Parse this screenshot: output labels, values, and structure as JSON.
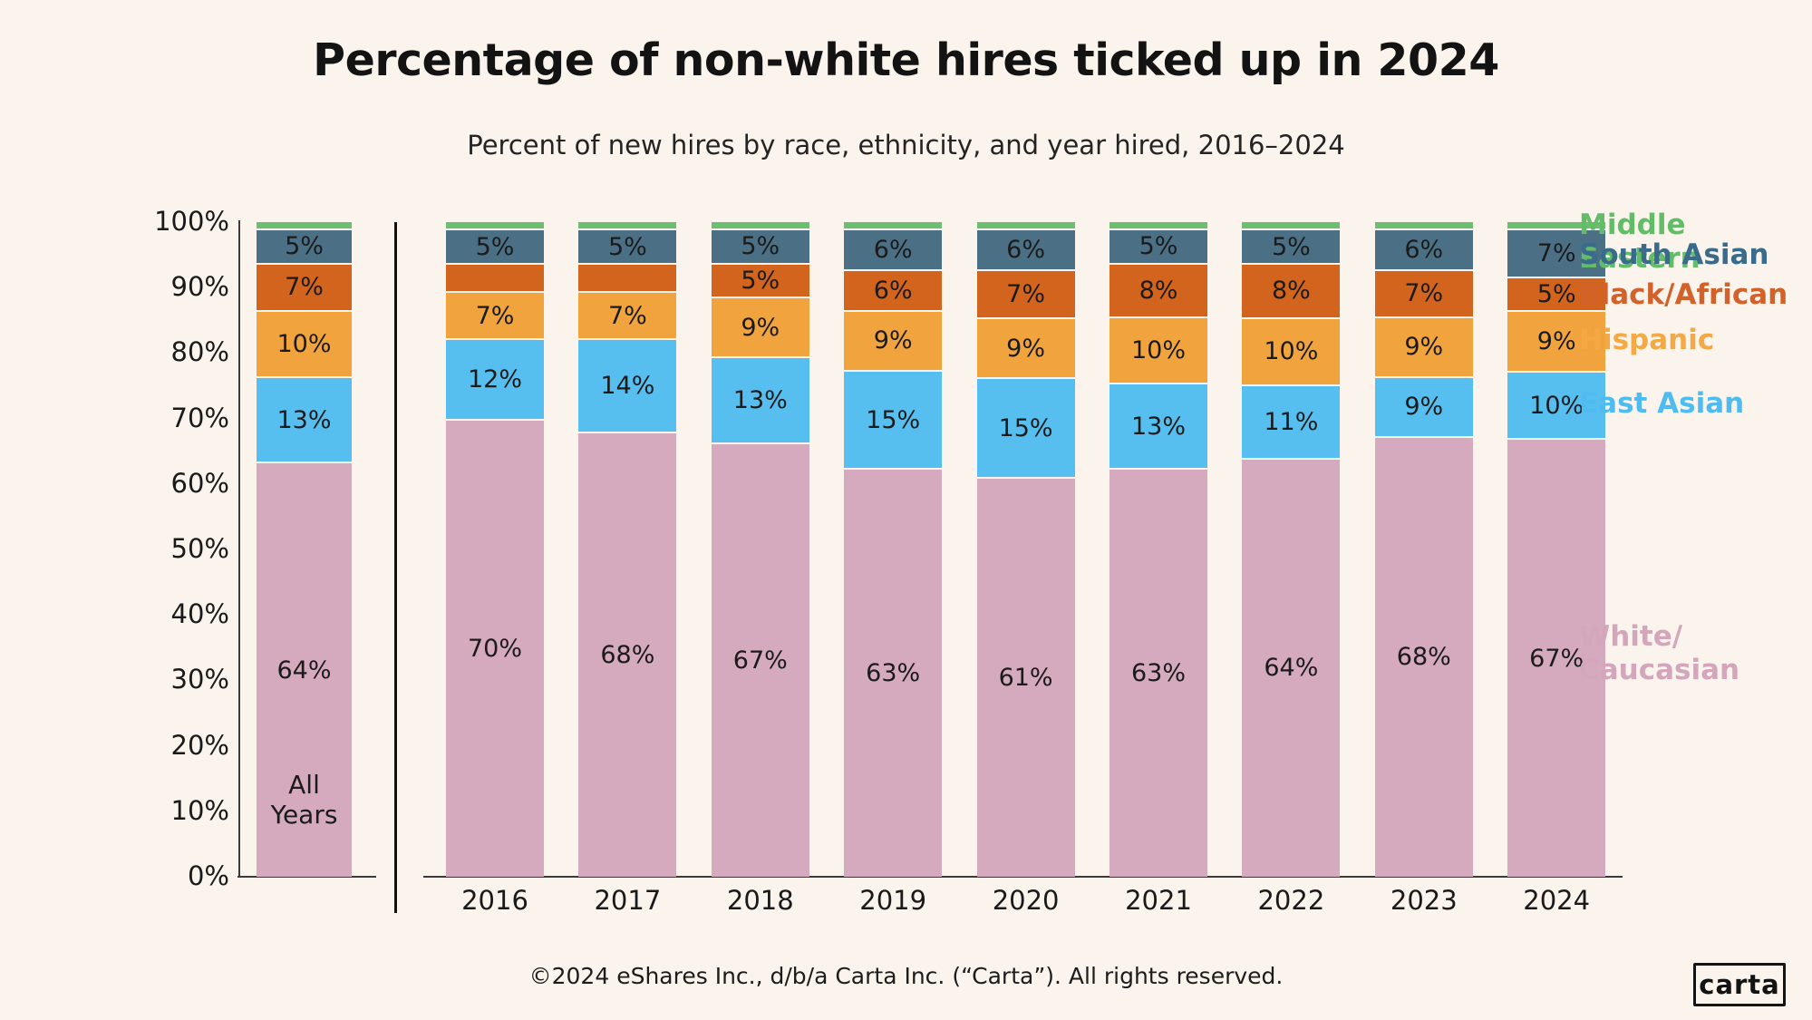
{
  "title": "Percentage of non-white hires ticked up in 2024",
  "subtitle": "Percent of new hires by race, ethnicity, and year hired, 2016–2024",
  "footer": {
    "copyright": "©2024 eShares Inc., d/b/a Carta Inc. (“Carta”). All rights reserved.",
    "logo_text": "carta"
  },
  "background_color": "#FAF4EC",
  "chart_data": {
    "type": "bar",
    "stacked": true,
    "categories": [
      "All Years",
      "2016",
      "2017",
      "2018",
      "2019",
      "2020",
      "2021",
      "2022",
      "2023",
      "2024"
    ],
    "series": [
      {
        "name": "White/Caucasian",
        "color": "#D5A9BE",
        "values": [
          64,
          70,
          68,
          67,
          63,
          61,
          63,
          64,
          68,
          67
        ],
        "labels": [
          "64%",
          "70%",
          "68%",
          "67%",
          "63%",
          "61%",
          "63%",
          "64%",
          "68%",
          "67%"
        ]
      },
      {
        "name": "East Asian",
        "color": "#56BFEF",
        "values": [
          13,
          12,
          14,
          13,
          15,
          15,
          13,
          11,
          9,
          10
        ],
        "labels": [
          "13%",
          "12%",
          "14%",
          "13%",
          "15%",
          "15%",
          "13%",
          "11%",
          "9%",
          "10%"
        ]
      },
      {
        "name": "Hispanic",
        "color": "#F1A43E",
        "values": [
          10,
          7,
          7,
          9,
          9,
          9,
          10,
          10,
          9,
          9
        ],
        "labels": [
          "10%",
          "7%",
          "7%",
          "9%",
          "9%",
          "9%",
          "10%",
          "10%",
          "9%",
          "9%"
        ]
      },
      {
        "name": "Black/African",
        "color": "#D2641E",
        "values": [
          7,
          4,
          4,
          5,
          6,
          7,
          8,
          8,
          7,
          5
        ],
        "labels": [
          "7%",
          "",
          "",
          "5%",
          "6%",
          "7%",
          "8%",
          "8%",
          "7%",
          "5%"
        ]
      },
      {
        "name": "South Asian",
        "color": "#4B7086",
        "values": [
          5,
          5,
          5,
          5,
          6,
          6,
          5,
          5,
          6,
          7
        ],
        "labels": [
          "5%",
          "5%",
          "5%",
          "5%",
          "6%",
          "6%",
          "5%",
          "5%",
          "6%",
          "7%"
        ]
      },
      {
        "name": "Middle Eastern",
        "color": "#6CBF70",
        "values": [
          1,
          1,
          1,
          1,
          1,
          1,
          1,
          1,
          1,
          1
        ],
        "labels": [
          "",
          "",
          "",
          "",
          "",
          "",
          "",
          "",
          "",
          ""
        ]
      }
    ],
    "yticks": [
      "0%",
      "10%",
      "20%",
      "30%",
      "40%",
      "50%",
      "60%",
      "70%",
      "80%",
      "90%",
      "100%"
    ],
    "ylim": [
      0,
      100
    ],
    "grid": false,
    "legend_position": "right",
    "legend": [
      {
        "label": "Middle Eastern",
        "color": "#63BD68"
      },
      {
        "label": "South Asian",
        "color": "#3A6B8C"
      },
      {
        "label": "Black/African",
        "color": "#D2622A"
      },
      {
        "label": "Hispanic",
        "color": "#F4A945"
      },
      {
        "label": "East Asian",
        "color": "#4FBCF1"
      },
      {
        "label": "White/\nCaucasian",
        "color": "#D3A6BC"
      }
    ]
  }
}
